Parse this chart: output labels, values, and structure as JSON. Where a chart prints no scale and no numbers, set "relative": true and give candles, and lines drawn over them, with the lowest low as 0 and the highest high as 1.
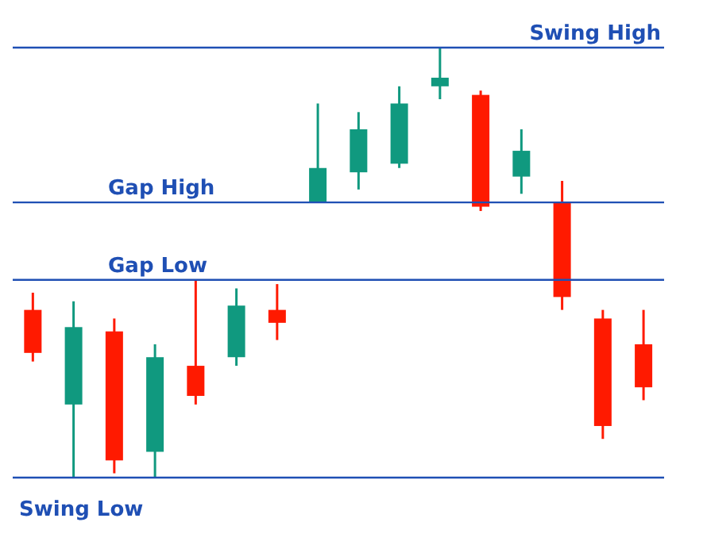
{
  "chart_data": {
    "type": "candlestick",
    "relative": true,
    "categories": [
      null,
      null,
      null,
      null,
      null,
      null,
      null,
      null,
      null,
      null,
      null,
      null,
      null,
      null,
      null,
      null
    ],
    "ohlc": [
      [
        0.39,
        0.43,
        0.27,
        0.29
      ],
      [
        0.17,
        0.41,
        0,
        0.35
      ],
      [
        0.34,
        0.37,
        0.01,
        0.04
      ],
      [
        0.06,
        0.31,
        0,
        0.28
      ],
      [
        0.26,
        0.46,
        0.17,
        0.19
      ],
      [
        0.28,
        0.44,
        0.26,
        0.4
      ],
      [
        0.39,
        0.45,
        0.32,
        0.36
      ],
      [
        0.64,
        0.87,
        0.64,
        0.72
      ],
      [
        0.71,
        0.85,
        0.67,
        0.81
      ],
      [
        0.73,
        0.91,
        0.72,
        0.87
      ],
      [
        0.91,
        1,
        0.88,
        0.93
      ],
      [
        0.89,
        0.9,
        0.62,
        0.63
      ],
      [
        0.7,
        0.81,
        0.66,
        0.76
      ],
      [
        0.64,
        0.69,
        0.39,
        0.42
      ],
      [
        0.37,
        0.39,
        0.09,
        0.12
      ],
      [
        0.31,
        0.39,
        0.18,
        0.21
      ]
    ],
    "colors": [
      "#ff1a00",
      "#10997f",
      "#ff1a00",
      "#10997f",
      "#ff1a00",
      "#10997f",
      "#ff1a00",
      "#10997f",
      "#10997f",
      "#10997f",
      "#10997f",
      "#ff1a00",
      "#10997f",
      "#ff1a00",
      "#ff1a00",
      "#ff1a00"
    ],
    "ref_lines": [
      {
        "axis": "y",
        "value": 1,
        "label": "Swing High",
        "color": "#1f4fb4"
      },
      {
        "axis": "y",
        "value": 0.64,
        "label": "Gap High",
        "color": "#1f4fb4"
      },
      {
        "axis": "y",
        "value": 0.46,
        "label": "Gap Low",
        "color": "#1f4fb4"
      },
      {
        "axis": "y",
        "value": 0,
        "label": "Swing Low",
        "color": "#1f4fb4"
      }
    ],
    "grid": false,
    "legend": false
  }
}
